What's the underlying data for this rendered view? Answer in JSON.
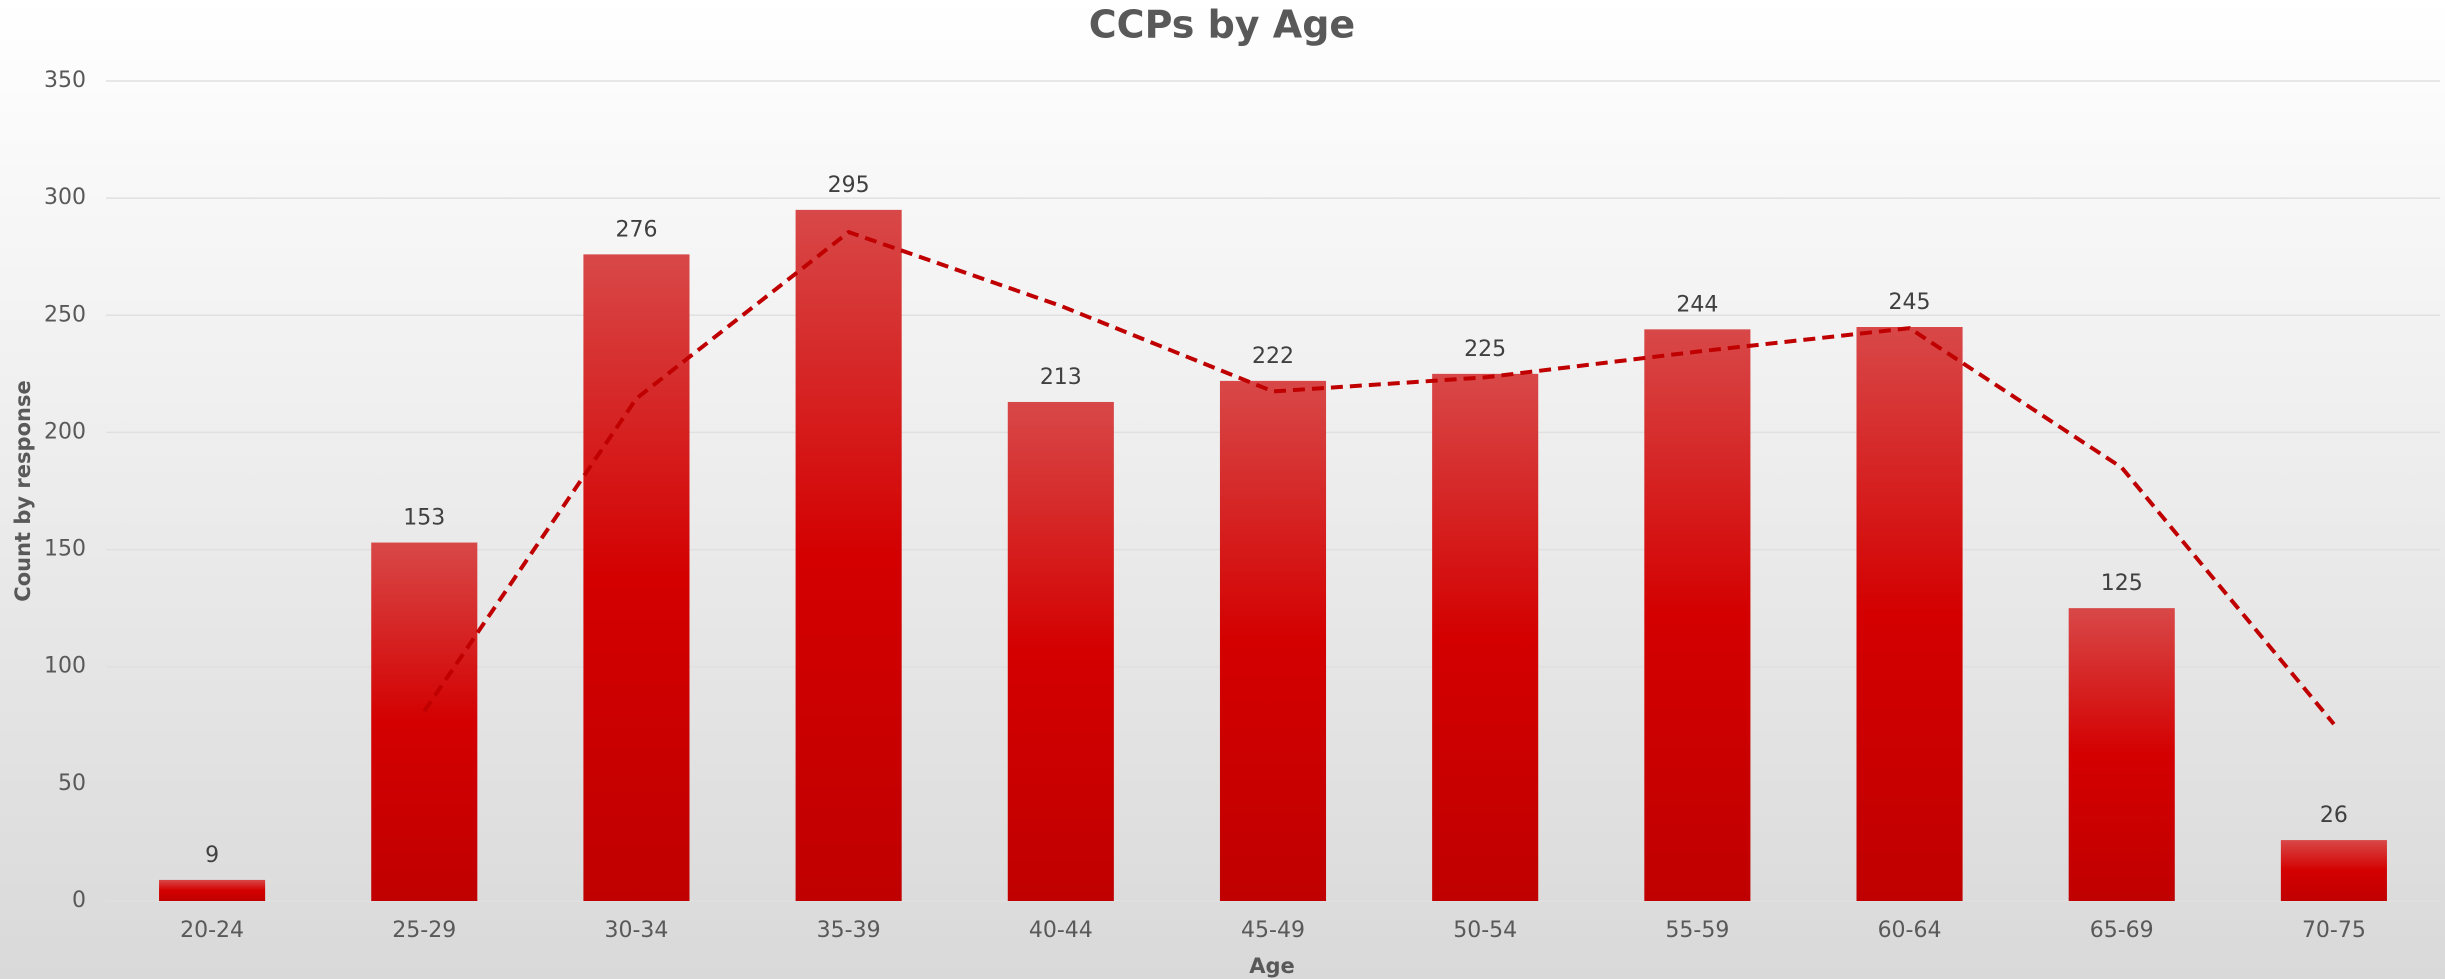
{
  "chart_data": {
    "type": "bar",
    "title": "CCPs by Age",
    "x_label": "Age",
    "y_label": "Count by response",
    "categories": [
      "20-24",
      "25-29",
      "30-34",
      "35-39",
      "40-44",
      "45-49",
      "50-54",
      "55-59",
      "60-64",
      "65-69",
      "70-75"
    ],
    "values": [
      9,
      153,
      276,
      295,
      213,
      222,
      225,
      244,
      245,
      125,
      26
    ],
    "color": "#d40000",
    "trend": {
      "color": "#c00000",
      "values": [
        null,
        81,
        214.5,
        285.5,
        254,
        217.5,
        223.5,
        234.5,
        244.5,
        185,
        75.5
      ]
    },
    "ylim": [
      0,
      350
    ],
    "yticks": [
      0,
      50,
      100,
      150,
      200,
      250,
      300,
      350
    ],
    "grid": true
  }
}
